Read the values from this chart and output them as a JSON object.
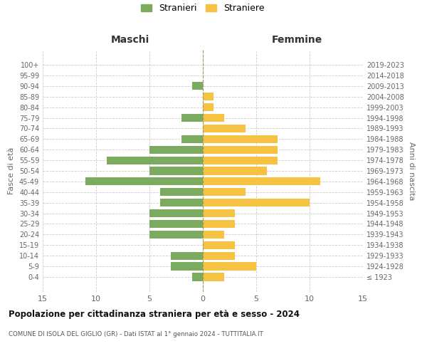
{
  "age_groups": [
    "100+",
    "95-99",
    "90-94",
    "85-89",
    "80-84",
    "75-79",
    "70-74",
    "65-69",
    "60-64",
    "55-59",
    "50-54",
    "45-49",
    "40-44",
    "35-39",
    "30-34",
    "25-29",
    "20-24",
    "15-19",
    "10-14",
    "5-9",
    "0-4"
  ],
  "birth_years": [
    "≤ 1923",
    "1924-1928",
    "1929-1933",
    "1934-1938",
    "1939-1943",
    "1944-1948",
    "1949-1953",
    "1954-1958",
    "1959-1963",
    "1964-1968",
    "1969-1973",
    "1974-1978",
    "1979-1983",
    "1984-1988",
    "1989-1993",
    "1994-1998",
    "1999-2003",
    "2004-2008",
    "2009-2013",
    "2014-2018",
    "2019-2023"
  ],
  "maschi": [
    0,
    0,
    1,
    0,
    0,
    2,
    0,
    2,
    5,
    9,
    5,
    11,
    4,
    4,
    5,
    5,
    5,
    0,
    3,
    3,
    1
  ],
  "femmine": [
    0,
    0,
    0,
    1,
    1,
    2,
    4,
    7,
    7,
    7,
    6,
    11,
    4,
    10,
    3,
    3,
    2,
    3,
    3,
    5,
    2
  ],
  "color_maschi": "#7aab5e",
  "color_femmine": "#f5c242",
  "title": "Popolazione per cittadinanza straniera per età e sesso - 2024",
  "subtitle": "COMUNE DI ISOLA DEL GIGLIO (GR) - Dati ISTAT al 1° gennaio 2024 - TUTTITALIA.IT",
  "xlabel_left": "Maschi",
  "xlabel_right": "Femmine",
  "ylabel_left": "Fasce di età",
  "ylabel_right": "Anni di nascita",
  "legend_maschi": "Stranieri",
  "legend_femmine": "Straniere",
  "xlim": 15,
  "background_color": "#ffffff",
  "grid_color": "#cccccc"
}
